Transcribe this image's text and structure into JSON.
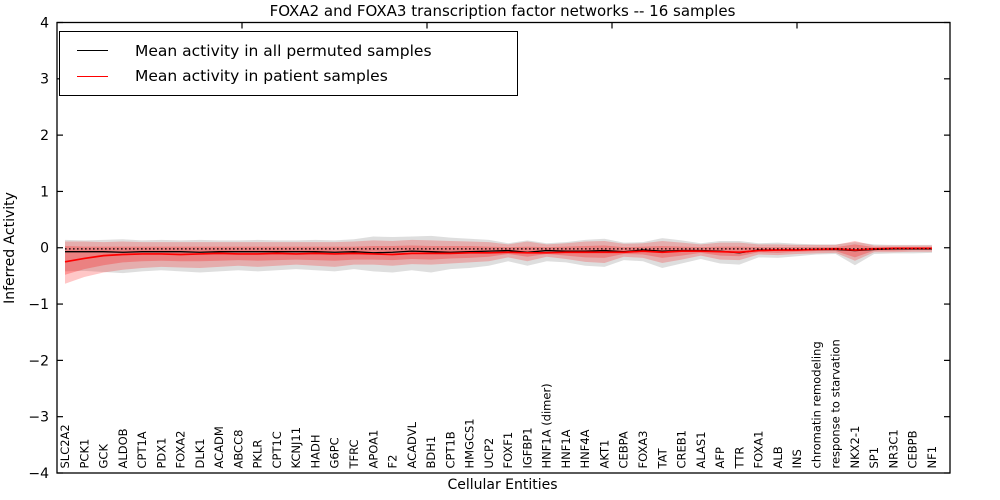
{
  "chart_data": {
    "type": "line",
    "title": "FOXA2 and FOXA3 transcription factor networks -- 16 samples",
    "xlabel": "Cellular Entities",
    "ylabel": "Inferred Activity",
    "ylim": [
      -4,
      4
    ],
    "grid": false,
    "yticks": {
      "values": [
        4,
        3,
        2,
        1,
        0,
        -1,
        -2,
        -3,
        -4
      ],
      "labels": [
        "4",
        "3",
        "2",
        "1",
        "0",
        "−1",
        "−2",
        "−3",
        "−4"
      ]
    },
    "categories": [
      "SLC2A2",
      "PCK1",
      "GCK",
      "ALDOB",
      "CPT1A",
      "PDX1",
      "FOXA2",
      "DLK1",
      "ACADM",
      "ABCC8",
      "PKLR",
      "CPT1C",
      "KCNJ11",
      "HADH",
      "G6PC",
      "TFRC",
      "APOA1",
      "F2",
      "ACADVL",
      "BDH1",
      "CPT1B",
      "HMGCS1",
      "UCP2",
      "FOXF1",
      "IGFBP1",
      "HNF1A (dimer)",
      "HNF1A",
      "HNF4A",
      "AKT1",
      "CEBPA",
      "FOXA3",
      "TAT",
      "CREB1",
      "ALAS1",
      "AFP",
      "TTR",
      "FOXA1",
      "ALB",
      "INS",
      "chromatin remodeling",
      "response to starvation",
      "NKX2-1",
      "SP1",
      "NR3C1",
      "CEBPB",
      "NF1"
    ],
    "legend": {
      "position": "upper-left",
      "entries": [
        {
          "label": "Mean activity in all permuted samples",
          "color": "#000000"
        },
        {
          "label": "Mean activity in patient samples",
          "color": "#ff0000"
        }
      ]
    },
    "reference_line": {
      "style": "dotted",
      "color": "#000000",
      "value": -0.02
    },
    "series": [
      {
        "name": "Mean activity in all permuted samples",
        "color": "#000000",
        "width": 1.3,
        "values": [
          -0.07,
          -0.07,
          -0.07,
          -0.08,
          -0.07,
          -0.07,
          -0.07,
          -0.08,
          -0.07,
          -0.07,
          -0.07,
          -0.07,
          -0.07,
          -0.07,
          -0.08,
          -0.07,
          -0.09,
          -0.08,
          -0.06,
          -0.07,
          -0.08,
          -0.07,
          -0.06,
          -0.05,
          -0.08,
          -0.05,
          -0.06,
          -0.06,
          -0.05,
          -0.07,
          -0.04,
          -0.06,
          -0.05,
          -0.05,
          -0.06,
          -0.09,
          -0.04,
          -0.04,
          -0.04,
          -0.03,
          -0.03,
          -0.05,
          -0.03,
          -0.02,
          -0.02,
          -0.02
        ]
      },
      {
        "name": "Mean activity in patient samples",
        "color": "#ff0000",
        "width": 1.7,
        "values": [
          -0.25,
          -0.19,
          -0.14,
          -0.12,
          -0.11,
          -0.11,
          -0.12,
          -0.11,
          -0.1,
          -0.11,
          -0.11,
          -0.1,
          -0.11,
          -0.1,
          -0.11,
          -0.1,
          -0.11,
          -0.12,
          -0.1,
          -0.1,
          -0.1,
          -0.09,
          -0.09,
          -0.08,
          -0.09,
          -0.09,
          -0.08,
          -0.08,
          -0.08,
          -0.08,
          -0.06,
          -0.08,
          -0.06,
          -0.06,
          -0.07,
          -0.08,
          -0.05,
          -0.04,
          -0.04,
          -0.03,
          -0.02,
          -0.04,
          -0.02,
          -0.01,
          -0.01,
          -0.01
        ]
      }
    ],
    "bands": [
      {
        "name": "permuted-range",
        "color": "#000000",
        "opacity": 0.13,
        "upper": [
          0.14,
          0.13,
          0.14,
          0.15,
          0.13,
          0.14,
          0.13,
          0.14,
          0.13,
          0.13,
          0.14,
          0.13,
          0.13,
          0.14,
          0.13,
          0.15,
          0.2,
          0.19,
          0.2,
          0.21,
          0.18,
          0.16,
          0.14,
          0.08,
          0.13,
          0.08,
          0.1,
          0.14,
          0.16,
          0.09,
          0.1,
          0.17,
          0.13,
          0.08,
          0.12,
          0.12,
          0.08,
          0.09,
          0.07,
          0.06,
          0.06,
          0.1,
          0.06,
          0.05,
          0.05,
          0.05
        ],
        "lower": [
          -0.42,
          -0.41,
          -0.43,
          -0.45,
          -0.42,
          -0.4,
          -0.42,
          -0.44,
          -0.42,
          -0.4,
          -0.42,
          -0.4,
          -0.38,
          -0.4,
          -0.42,
          -0.38,
          -0.42,
          -0.44,
          -0.4,
          -0.44,
          -0.38,
          -0.36,
          -0.32,
          -0.24,
          -0.32,
          -0.24,
          -0.26,
          -0.32,
          -0.34,
          -0.22,
          -0.24,
          -0.36,
          -0.28,
          -0.2,
          -0.28,
          -0.3,
          -0.17,
          -0.18,
          -0.15,
          -0.12,
          -0.11,
          -0.31,
          -0.11,
          -0.1,
          -0.1,
          -0.09
        ]
      },
      {
        "name": "patient-range-outer",
        "color": "#ff0000",
        "opacity": 0.22,
        "upper": [
          0.11,
          0.11,
          0.1,
          0.11,
          0.1,
          0.1,
          0.1,
          0.1,
          0.1,
          0.1,
          0.1,
          0.1,
          0.1,
          0.1,
          0.1,
          0.11,
          0.13,
          0.12,
          0.14,
          0.13,
          0.12,
          0.11,
          0.1,
          0.06,
          0.11,
          0.06,
          0.08,
          0.11,
          0.12,
          0.07,
          0.08,
          0.12,
          0.09,
          0.06,
          0.09,
          0.09,
          0.06,
          0.06,
          0.05,
          0.05,
          0.05,
          0.12,
          0.04,
          0.04,
          0.04,
          0.04
        ],
        "lower": [
          -0.64,
          -0.52,
          -0.44,
          -0.39,
          -0.36,
          -0.34,
          -0.35,
          -0.36,
          -0.34,
          -0.32,
          -0.34,
          -0.32,
          -0.3,
          -0.32,
          -0.34,
          -0.3,
          -0.3,
          -0.32,
          -0.29,
          -0.3,
          -0.28,
          -0.26,
          -0.24,
          -0.17,
          -0.24,
          -0.16,
          -0.2,
          -0.25,
          -0.27,
          -0.16,
          -0.18,
          -0.27,
          -0.21,
          -0.14,
          -0.21,
          -0.22,
          -0.12,
          -0.13,
          -0.11,
          -0.1,
          -0.09,
          -0.23,
          -0.08,
          -0.08,
          -0.07,
          -0.07
        ]
      },
      {
        "name": "patient-range-inner",
        "color": "#ff0000",
        "opacity": 0.25,
        "upper": [
          0.03,
          0.02,
          0.02,
          0.02,
          0.02,
          0.02,
          0.02,
          0.02,
          0.02,
          0.02,
          0.02,
          0.02,
          0.02,
          0.02,
          0.02,
          0.02,
          0.03,
          0.03,
          0.04,
          0.03,
          0.03,
          0.03,
          0.02,
          0.01,
          0.02,
          0.01,
          0.02,
          0.03,
          0.04,
          0.01,
          0.02,
          0.03,
          0.02,
          0.01,
          0.02,
          0.02,
          0.01,
          0.01,
          0.01,
          0.01,
          0.01,
          0.06,
          0.01,
          0.01,
          0.01,
          0.01
        ],
        "lower": [
          -0.48,
          -0.38,
          -0.31,
          -0.26,
          -0.24,
          -0.23,
          -0.24,
          -0.24,
          -0.23,
          -0.22,
          -0.23,
          -0.22,
          -0.21,
          -0.22,
          -0.23,
          -0.21,
          -0.21,
          -0.22,
          -0.2,
          -0.21,
          -0.19,
          -0.18,
          -0.16,
          -0.11,
          -0.16,
          -0.11,
          -0.14,
          -0.17,
          -0.18,
          -0.11,
          -0.12,
          -0.18,
          -0.14,
          -0.09,
          -0.14,
          -0.15,
          -0.08,
          -0.09,
          -0.07,
          -0.06,
          -0.06,
          -0.17,
          -0.05,
          -0.05,
          -0.04,
          -0.04
        ]
      }
    ]
  }
}
